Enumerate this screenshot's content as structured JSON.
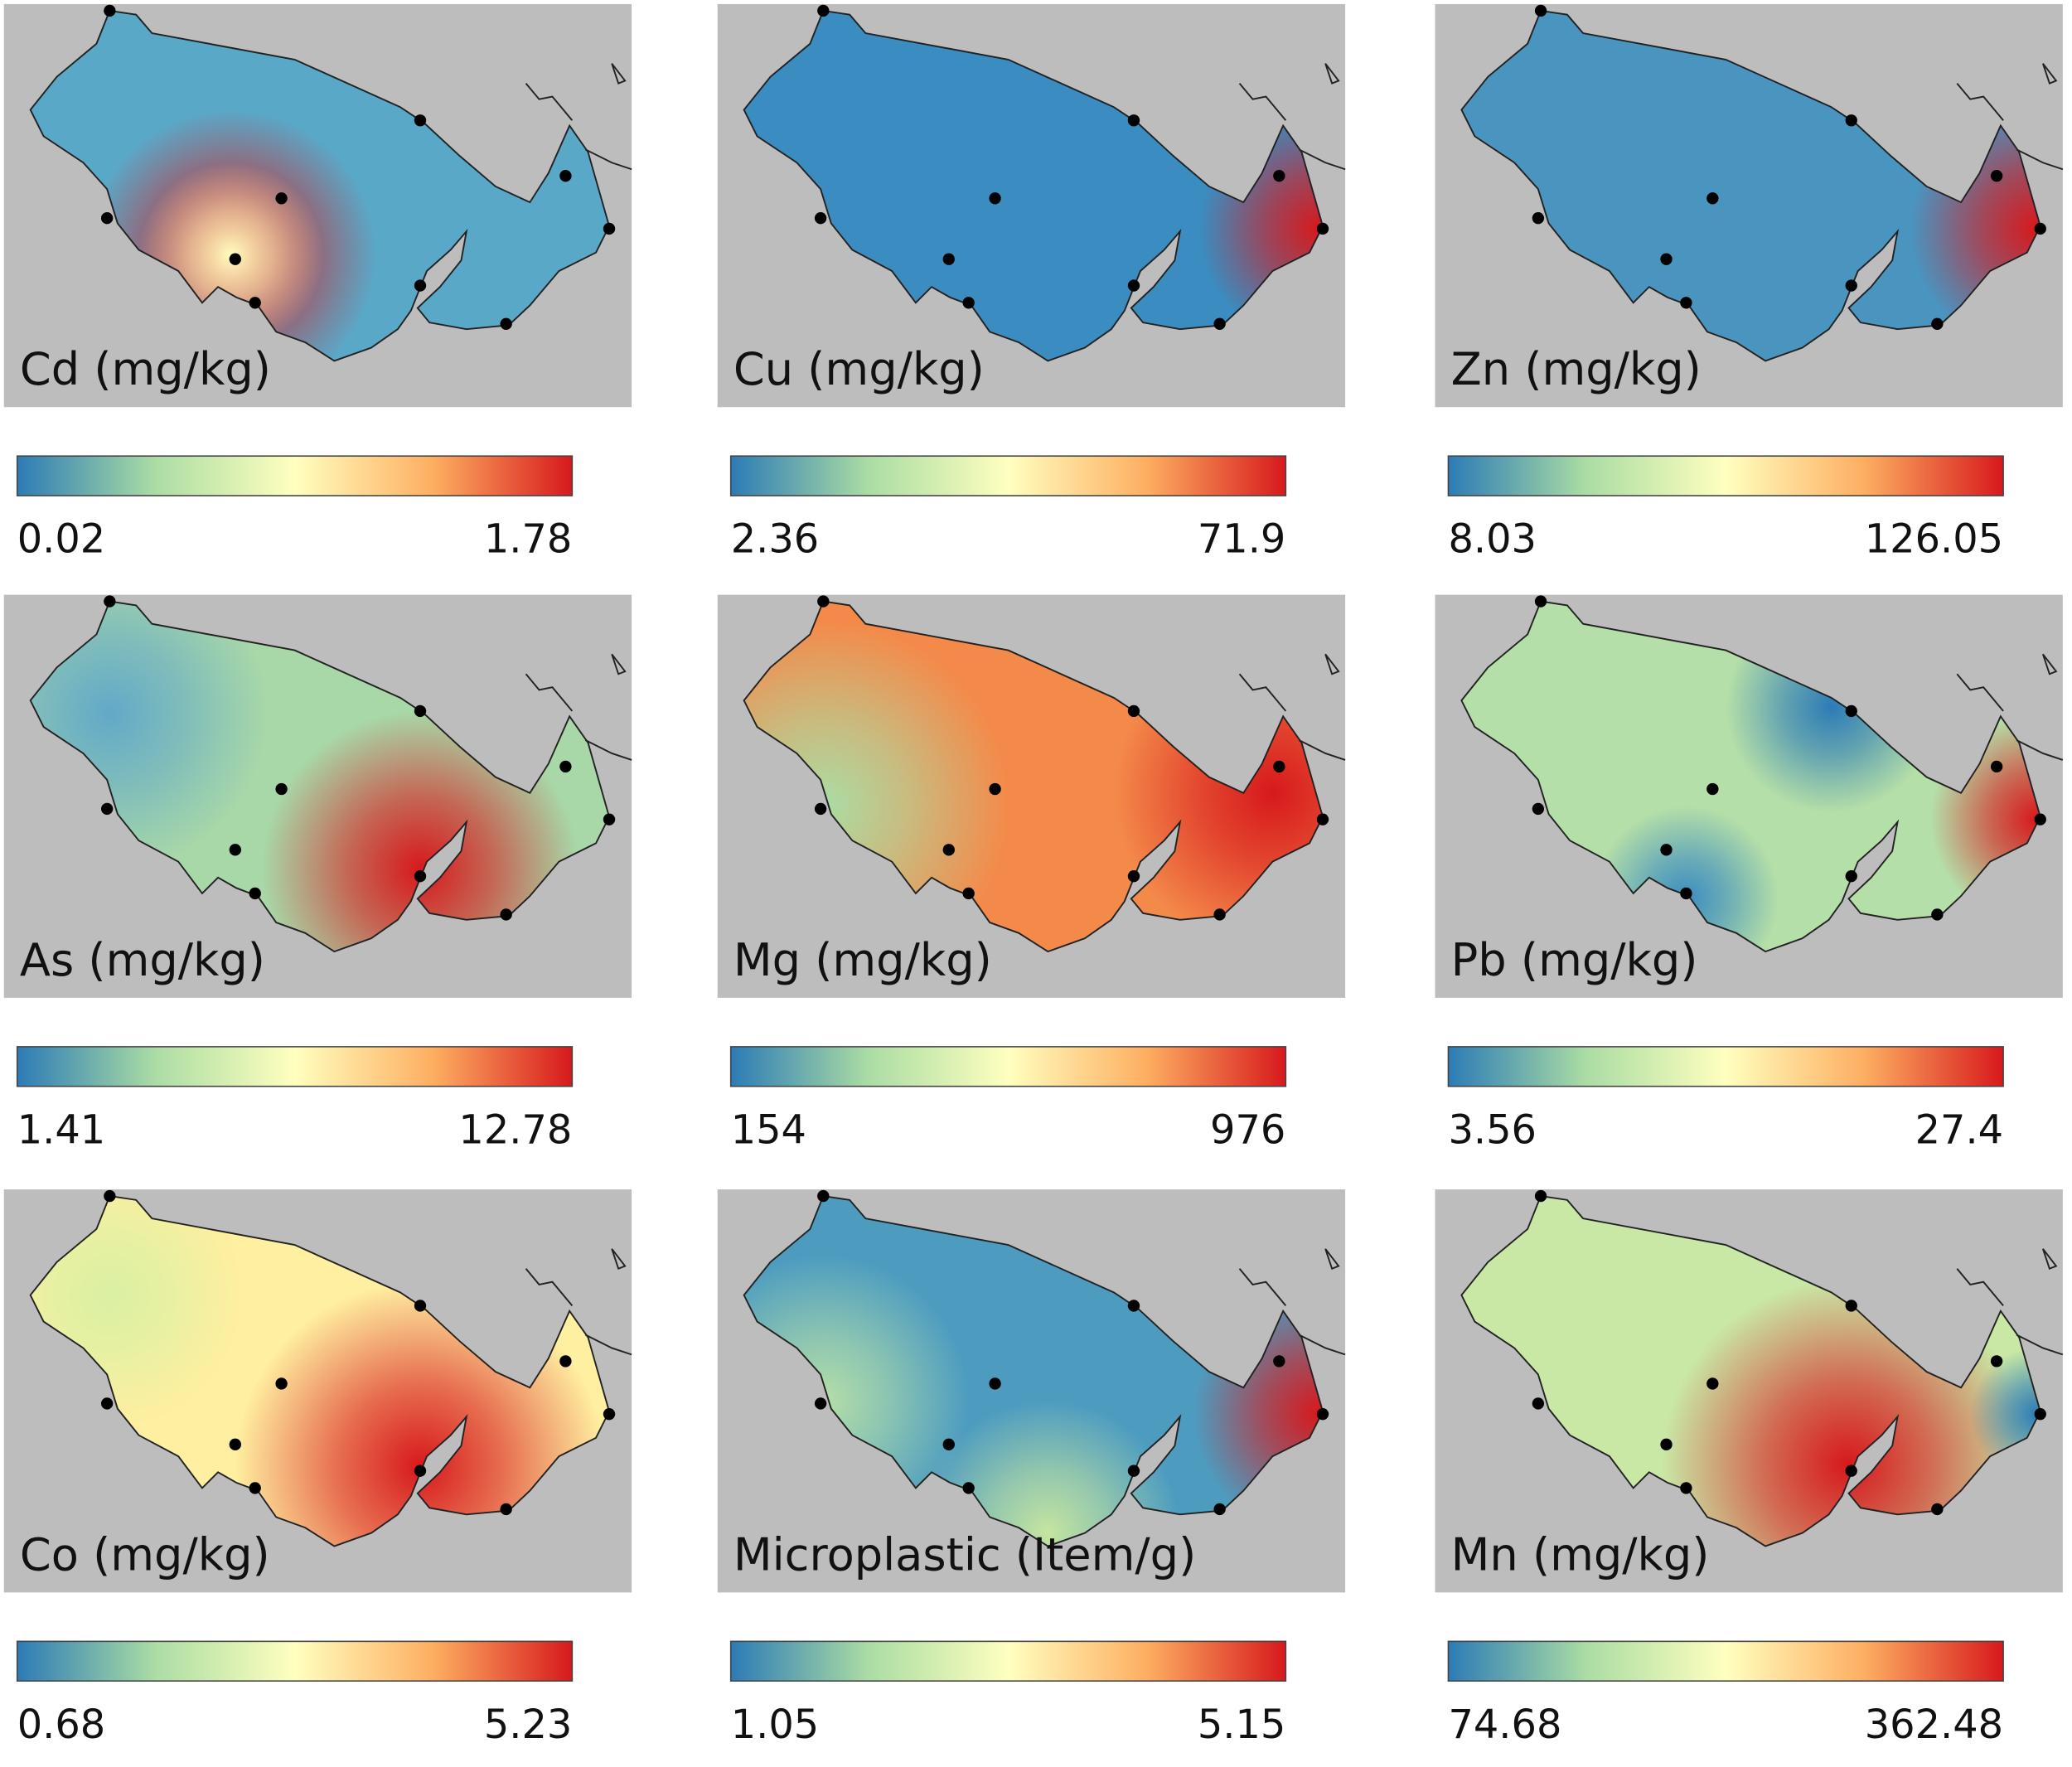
{
  "panels": [
    {
      "label": "Cd (mg/kg)",
      "min": 0.02,
      "max": 1.78
    },
    {
      "label": "Cu (mg/kg)",
      "min": 2.36,
      "max": 71.9
    },
    {
      "label": "Zn (mg/kg)",
      "min": 8.03,
      "max": 126.05
    },
    {
      "label": "As (mg/kg)",
      "min": 1.41,
      "max": 12.78
    },
    {
      "label": "Mg (mg/kg)",
      "min": 154,
      "max": 976
    },
    {
      "label": "Pb (mg/kg)",
      "min": 3.56,
      "max": 27.4
    },
    {
      "label": "Co (mg/kg)",
      "min": 0.68,
      "max": 5.23
    },
    {
      "label": "Microplastic (Item/g)",
      "min": 1.05,
      "max": 5.15
    },
    {
      "label": "Mn (mg/kg)",
      "min": 74.68,
      "max": 362.48
    }
  ]
}
